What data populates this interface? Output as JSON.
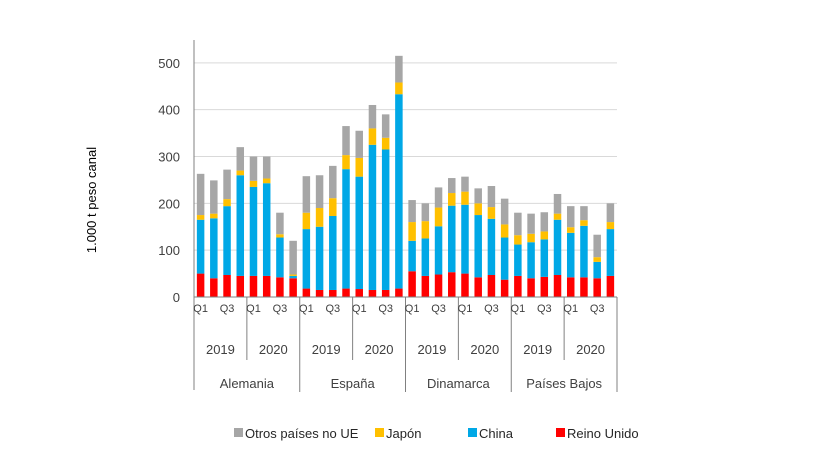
{
  "chart_data": {
    "type": "bar",
    "stacked": true,
    "ylabel": "1.000 t peso canal",
    "ylim": [
      0,
      550
    ],
    "yticks": [
      0,
      100,
      200,
      300,
      400,
      500
    ],
    "quarter_labels": [
      "Q1",
      "",
      "Q3",
      ""
    ],
    "years": [
      "2019",
      "2020"
    ],
    "countries": [
      "Alemania",
      "España",
      "Dinamarca",
      "Países Bajos"
    ],
    "legend": [
      "Otros países no UE",
      "Japón",
      "China",
      "Reino Unido"
    ],
    "colors": {
      "Reino Unido": "#ff0000",
      "China": "#00a8e6",
      "Japón": "#ffc000",
      "Otros países no UE": "#a6a6a6"
    },
    "series": [
      {
        "name": "Reino Unido",
        "values": [
          50,
          40,
          47,
          45,
          45,
          45,
          42,
          40,
          18,
          15,
          15,
          18,
          17,
          15,
          15,
          18,
          55,
          45,
          48,
          53,
          50,
          42,
          47,
          37,
          45,
          40,
          43,
          47,
          42,
          42,
          40,
          45
        ]
      },
      {
        "name": "China",
        "values": [
          115,
          128,
          147,
          215,
          190,
          198,
          85,
          5,
          127,
          135,
          158,
          255,
          240,
          310,
          300,
          415,
          65,
          80,
          103,
          142,
          147,
          133,
          120,
          90,
          67,
          77,
          80,
          118,
          95,
          110,
          35,
          100
        ]
      },
      {
        "name": "Japón",
        "values": [
          10,
          10,
          15,
          10,
          13,
          10,
          7,
          3,
          35,
          40,
          38,
          30,
          40,
          35,
          25,
          25,
          40,
          37,
          40,
          27,
          28,
          25,
          25,
          28,
          20,
          18,
          17,
          13,
          12,
          12,
          10,
          15
        ]
      },
      {
        "name": "Otros países no UE",
        "values": [
          88,
          71,
          63,
          50,
          52,
          47,
          46,
          72,
          78,
          70,
          69,
          62,
          58,
          50,
          50,
          57,
          47,
          38,
          43,
          32,
          32,
          32,
          45,
          55,
          48,
          43,
          41,
          42,
          45,
          30,
          48,
          40
        ]
      }
    ]
  }
}
